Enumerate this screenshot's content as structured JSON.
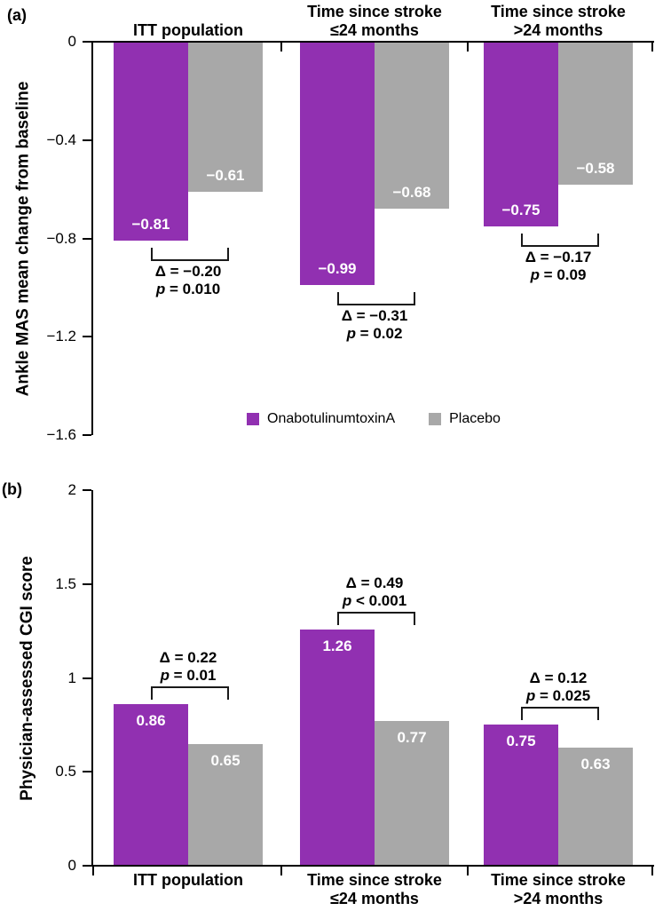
{
  "chart_data": [
    {
      "id": "a",
      "type": "bar",
      "panel_label": "(a)",
      "ylabel": "Ankle MAS mean change from baseline",
      "ylim": [
        0,
        -1.6
      ],
      "grid": false,
      "yticks": [
        0,
        -0.4,
        -0.8,
        -1.2,
        -1.6
      ],
      "ytick_labels": [
        "0",
        "−0.4",
        "−0.8",
        "−1.2",
        "−1.6"
      ],
      "categories": [
        [
          "ITT population"
        ],
        [
          "Time since stroke",
          "≤24 months"
        ],
        [
          "Time since stroke",
          ">24 months"
        ]
      ],
      "series": [
        {
          "name": "OnabotulinumtoxinA",
          "color": "#9130b1",
          "values": [
            -0.81,
            -0.99,
            -0.75
          ],
          "value_labels": [
            "−0.81",
            "−0.99",
            "−0.75"
          ]
        },
        {
          "name": "Placebo",
          "color": "#a8a8a8",
          "values": [
            -0.61,
            -0.68,
            -0.58
          ],
          "value_labels": [
            "−0.61",
            "−0.68",
            "−0.58"
          ]
        }
      ],
      "annotations": [
        {
          "delta": "Δ = −0.20",
          "p": "p = 0.010"
        },
        {
          "delta": "Δ = −0.31",
          "p": "p = 0.02"
        },
        {
          "delta": "Δ = −0.17",
          "p": "p = 0.09"
        }
      ],
      "legend": {
        "position": "bottom-center",
        "items": [
          {
            "label": "OnabotulinumtoxinA",
            "color": "#9130b1"
          },
          {
            "label": "Placebo",
            "color": "#a8a8a8"
          }
        ]
      }
    },
    {
      "id": "b",
      "type": "bar",
      "panel_label": "(b)",
      "ylabel": "Physician-assessed CGI score",
      "ylim": [
        0,
        2
      ],
      "grid": false,
      "yticks": [
        2,
        1.5,
        1,
        0.5,
        0
      ],
      "ytick_labels": [
        "2",
        "1.5",
        "1",
        "0.5",
        "0"
      ],
      "categories": [
        [
          "ITT population"
        ],
        [
          "Time since stroke",
          "≤24 months"
        ],
        [
          "Time since stroke",
          ">24 months"
        ]
      ],
      "series": [
        {
          "name": "OnabotulinumtoxinA",
          "color": "#9130b1",
          "values": [
            0.86,
            1.26,
            0.75
          ],
          "value_labels": [
            "0.86",
            "1.26",
            "0.75"
          ]
        },
        {
          "name": "Placebo",
          "color": "#a8a8a8",
          "values": [
            0.65,
            0.77,
            0.63
          ],
          "value_labels": [
            "0.65",
            "0.77",
            "0.63"
          ]
        }
      ],
      "annotations": [
        {
          "delta": "Δ = 0.22",
          "p": "p = 0.01"
        },
        {
          "delta": "Δ = 0.49",
          "p": "p < 0.001"
        },
        {
          "delta": "Δ = 0.12",
          "p": "p = 0.025"
        }
      ]
    }
  ]
}
